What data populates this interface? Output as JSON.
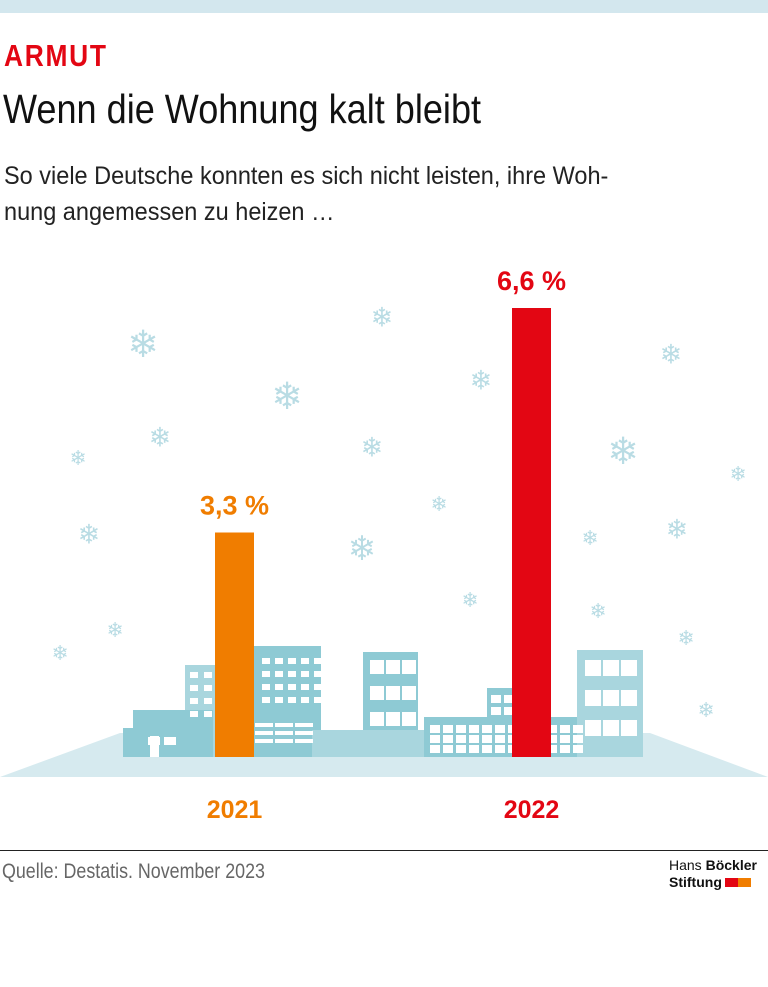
{
  "kicker": "ARMUT",
  "title": "Wenn die Wohnung kalt bleibt",
  "subtitle": "So viele Deutsche konnten es sich nicht leisten, ihre Woh-nung angemessen zu heizen …",
  "source": "Quelle: Destatis. November 2023",
  "logo": {
    "line1_light": "Hans",
    "line1_bold": "Böckler",
    "line2": "Stiftung"
  },
  "colors": {
    "orange": "#f07d00",
    "red": "#e30613",
    "buildings": "#8ecad4",
    "snow": "#b9dce4"
  },
  "chart_data": {
    "type": "bar",
    "categories": [
      "2021",
      "2022"
    ],
    "values": [
      3.3,
      6.6
    ],
    "labels": [
      "3,3 %",
      "6,6 %"
    ],
    "colors": [
      "#f07d00",
      "#e30613"
    ],
    "unit": "%",
    "ylim": [
      0,
      7
    ],
    "grid": false
  }
}
